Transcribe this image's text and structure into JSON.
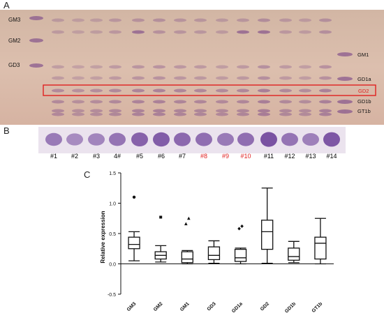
{
  "figure": {
    "panel_a": "A",
    "panel_b": "B",
    "panel_c": "C"
  },
  "tlc": {
    "left_markers": [
      "GM3",
      "GM2",
      "GD3"
    ],
    "right_markers": [
      "GM1",
      "GD1a",
      "GD2",
      "GD1b",
      "GT1b"
    ],
    "highlight_label": "GD2",
    "colors": {
      "background": "#d9b8a8",
      "band": "#8a5a8e",
      "highlight_box": "#e02020",
      "highlight_text": "#e02020"
    }
  },
  "western_blot": {
    "lanes": [
      {
        "label": "#1",
        "color": "#000000"
      },
      {
        "label": "#2",
        "color": "#000000"
      },
      {
        "label": "#3",
        "color": "#000000"
      },
      {
        "label": "4#",
        "color": "#000000"
      },
      {
        "label": "#5",
        "color": "#000000"
      },
      {
        "label": "#6",
        "color": "#000000"
      },
      {
        "label": "#7",
        "color": "#000000"
      },
      {
        "label": "#8",
        "color": "#e02020"
      },
      {
        "label": "#9",
        "color": "#e02020"
      },
      {
        "label": "#10",
        "color": "#e02020"
      },
      {
        "label": "#11",
        "color": "#000000"
      },
      {
        "label": "#12",
        "color": "#000000"
      },
      {
        "label": "#13",
        "color": "#000000"
      },
      {
        "label": "#14",
        "color": "#000000"
      }
    ],
    "intensities": [
      0.55,
      0.4,
      0.45,
      0.6,
      0.75,
      0.8,
      0.7,
      0.65,
      0.55,
      0.65,
      0.9,
      0.6,
      0.5,
      0.85
    ]
  },
  "chart_data": {
    "type": "box",
    "ylabel": "Relative expression",
    "ylim": [
      -0.5,
      1.5
    ],
    "yticks": [
      "-0.5",
      "0.0",
      "0.5",
      "1.0",
      "1.5"
    ],
    "categories": [
      "GM3",
      "GM2",
      "GM1",
      "GD3",
      "GD1a",
      "GD2",
      "GD1b",
      "GT1b"
    ],
    "boxes": [
      {
        "min": 0.05,
        "q1": 0.25,
        "median": 0.32,
        "q3": 0.44,
        "max": 0.53,
        "outliers": [
          1.1
        ],
        "outlier_marker": "circle"
      },
      {
        "min": 0.03,
        "q1": 0.08,
        "median": 0.14,
        "q3": 0.2,
        "max": 0.3,
        "outliers": [
          0.77
        ],
        "outlier_marker": "square"
      },
      {
        "min": 0.0,
        "q1": 0.02,
        "median": 0.08,
        "q3": 0.2,
        "max": 0.22,
        "outliers": [
          0.66,
          0.75
        ],
        "outlier_marker": "triangle"
      },
      {
        "min": 0.01,
        "q1": 0.07,
        "median": 0.14,
        "q3": 0.28,
        "max": 0.38,
        "outliers": [],
        "outlier_marker": "none"
      },
      {
        "min": 0.0,
        "q1": 0.04,
        "median": 0.1,
        "q3": 0.24,
        "max": 0.26,
        "outliers": [
          0.58,
          0.62
        ],
        "outlier_marker": "diamond"
      },
      {
        "min": 0.01,
        "q1": 0.24,
        "median": 0.53,
        "q3": 0.72,
        "max": 1.25,
        "outliers": [],
        "outlier_marker": "none"
      },
      {
        "min": 0.02,
        "q1": 0.06,
        "median": 0.12,
        "q3": 0.26,
        "max": 0.37,
        "outliers": [],
        "outlier_marker": "none"
      },
      {
        "min": 0.0,
        "q1": 0.08,
        "median": 0.34,
        "q3": 0.44,
        "max": 0.75,
        "outliers": [],
        "outlier_marker": "none"
      }
    ],
    "grid": false,
    "legend": "none"
  }
}
